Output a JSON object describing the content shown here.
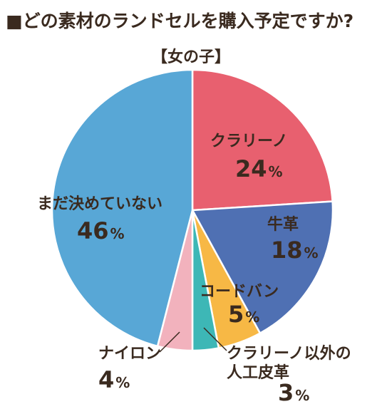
{
  "title": "■どの素材のランドセルを購入予定ですか?",
  "subtitle": "【女の子】",
  "chart_data": {
    "type": "pie",
    "title": "■どの素材のランドセルを購入予定ですか?",
    "subtitle": "【女の子】",
    "unit": "%",
    "start_angle_deg": 0,
    "direction": "clockwise",
    "slices": [
      {
        "label": "クラリーノ",
        "value": 24,
        "color": "#e8606f"
      },
      {
        "label": "牛革",
        "value": 18,
        "color": "#4f70b3"
      },
      {
        "label": "コードバン",
        "value": 5,
        "color": "#f7b845"
      },
      {
        "label": "クラリーノ以外の人工皮革",
        "label_lines": [
          "クラリーノ以外の",
          "人工皮革"
        ],
        "value": 3,
        "color": "#3db7b6"
      },
      {
        "label": "ナイロン",
        "value": 4,
        "color": "#f2b2bd"
      },
      {
        "label": "まだ決めていない",
        "value": 46,
        "color": "#58a7d6"
      }
    ]
  }
}
